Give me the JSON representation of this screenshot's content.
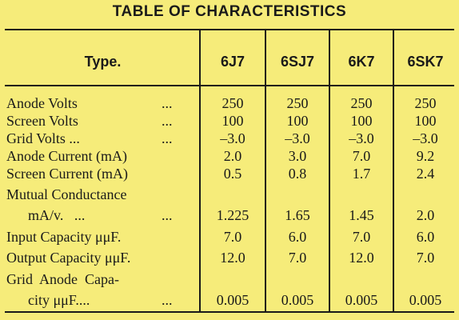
{
  "title": "TABLE OF CHARACTERISTICS",
  "header": {
    "type_label": "Type.",
    "columns": [
      "6J7",
      "6SJ7",
      "6K7",
      "6SK7"
    ]
  },
  "rows": [
    {
      "label": "Anode Volts",
      "dots": "...",
      "values": [
        "250",
        "250",
        "250",
        "250"
      ]
    },
    {
      "label": "Screen Volts",
      "dots": "...",
      "values": [
        "100",
        "100",
        "100",
        "100"
      ]
    },
    {
      "label": "Grid Volts ...",
      "dots": "...",
      "values": [
        "–3.0",
        "–3.0",
        "–3.0",
        "–3.0"
      ]
    },
    {
      "label": "Anode Current (mA)",
      "dots": "",
      "values": [
        "2.0",
        "3.0",
        "7.0",
        "9.2"
      ]
    },
    {
      "label": "Screen Current (mA)",
      "dots": "",
      "values": [
        "0.5",
        "0.8",
        "1.7",
        "2.4"
      ]
    },
    {
      "label": "Mutual Conductance",
      "dots": "",
      "values": [
        "",
        "",
        "",
        ""
      ]
    },
    {
      "label": "      mA/v.   ...",
      "dots": "...",
      "values": [
        "1.225",
        "1.65",
        "1.45",
        "2.0"
      ]
    },
    {
      "label": "Input Capacity μμF.",
      "dots": "",
      "values": [
        "7.0",
        "6.0",
        "7.0",
        "6.0"
      ]
    },
    {
      "label": "Output Capacity μμF.",
      "dots": "",
      "values": [
        "12.0",
        "7.0",
        "12.0",
        "7.0"
      ]
    },
    {
      "label": "Grid  Anode  Capa-",
      "dots": "",
      "values": [
        "",
        "",
        "",
        ""
      ]
    },
    {
      "label": "      city μμF....",
      "dots": "...",
      "values": [
        "0.005",
        "0.005",
        "0.005",
        "0.005"
      ]
    }
  ]
}
